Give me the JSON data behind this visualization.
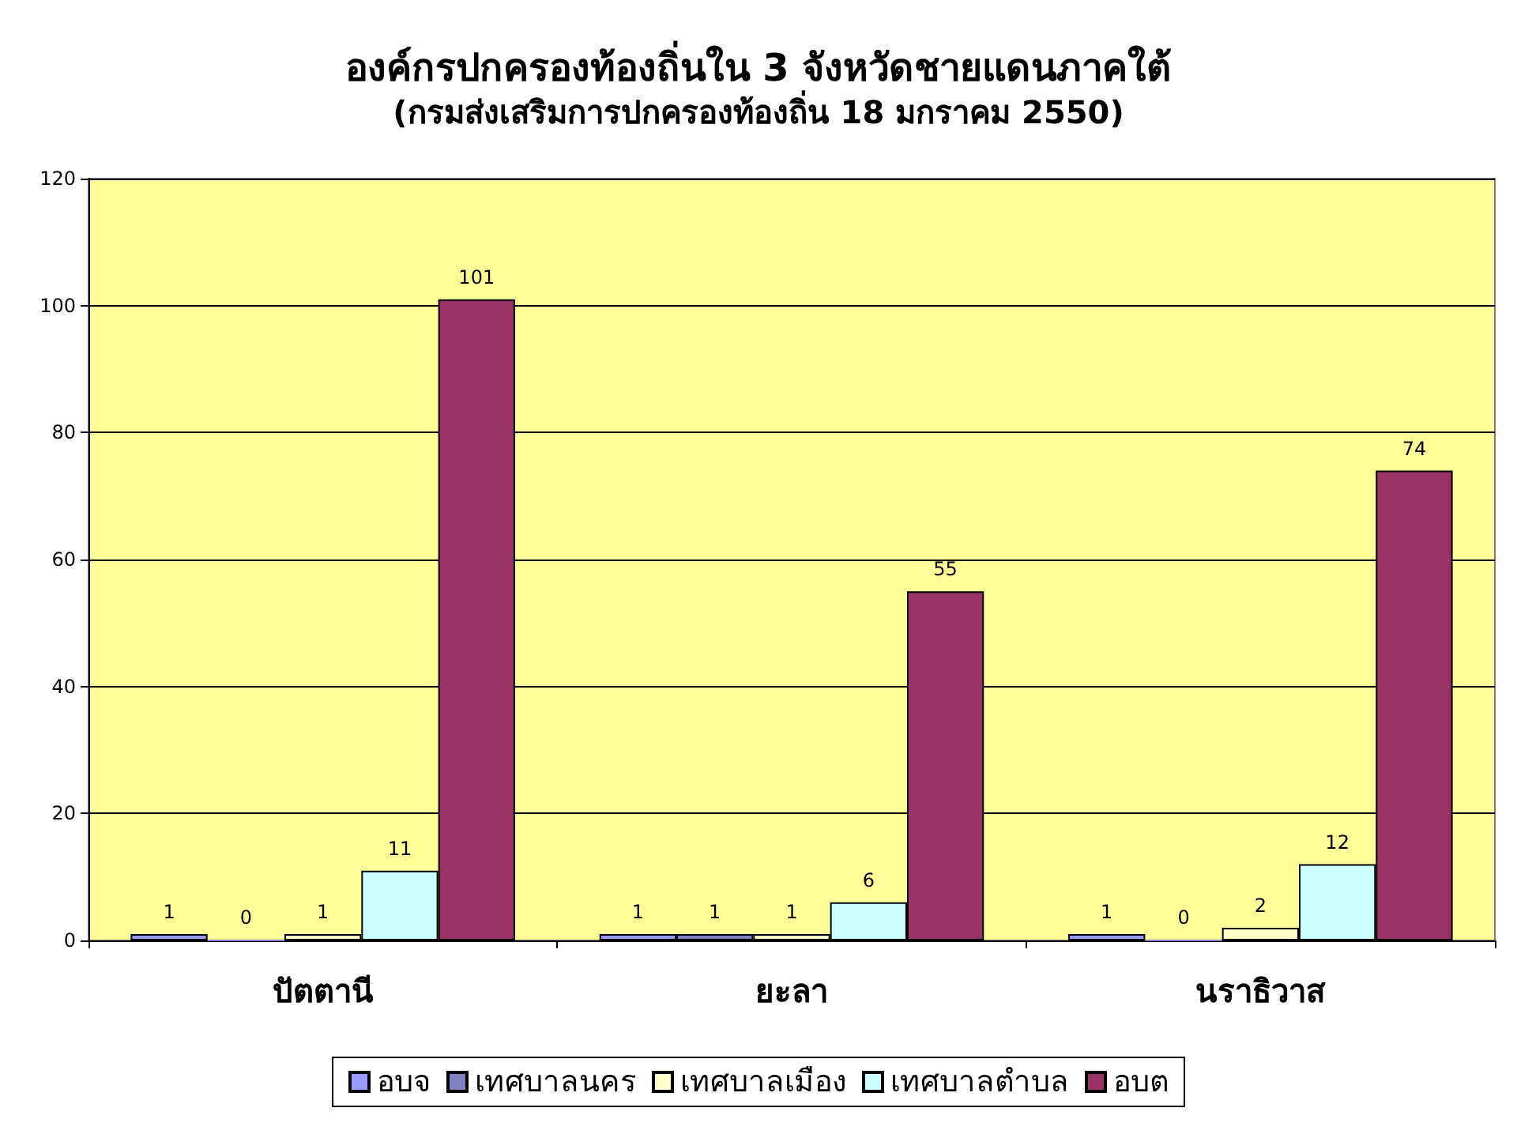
{
  "chart_data": {
    "type": "bar",
    "title": "องค์กรปกครองท้องถิ่นใน 3 จังหวัดชายแดนภาคใต้",
    "subtitle": "(กรมส่งเสริมการปกครองท้องถิ่น 18 มกราคม 2550)",
    "categories": [
      "ปัตตานี",
      "ยะลา",
      "นราธิวาส"
    ],
    "series": [
      {
        "name": "อบจ",
        "color": "#9999ff",
        "values": [
          1,
          1,
          1
        ]
      },
      {
        "name": "เทศบาลนคร",
        "color": "#8080c0",
        "values": [
          0,
          1,
          0
        ]
      },
      {
        "name": "เทศบาลเมือง",
        "color": "#ffffcc",
        "values": [
          1,
          1,
          2
        ]
      },
      {
        "name": "เทศบาลตำบล",
        "color": "#ccffff",
        "values": [
          11,
          6,
          12
        ]
      },
      {
        "name": "อบต",
        "color": "#993366",
        "values": [
          101,
          55,
          74
        ]
      }
    ],
    "ylim": [
      0,
      120
    ],
    "yticks": [
      0,
      20,
      40,
      60,
      80,
      100,
      120
    ],
    "grid": "y",
    "legend": "bottom",
    "data_labels": true
  }
}
